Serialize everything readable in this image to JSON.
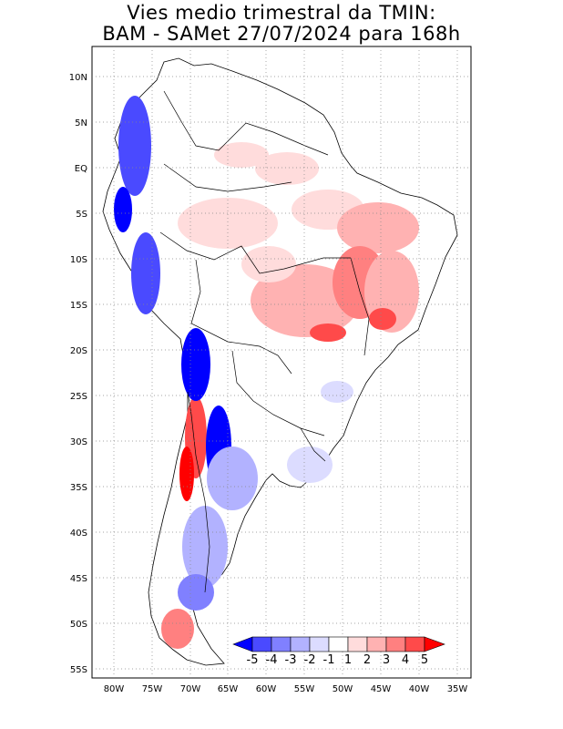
{
  "title": {
    "line1": "Vies medio trimestral da TMIN:",
    "line2": "BAM - SAMet 27/07/2024  para 168h"
  },
  "map": {
    "region": "South America",
    "field": "TMIN bias",
    "lat_labels": [
      "10N",
      "5N",
      "EQ",
      "5S",
      "10S",
      "15S",
      "20S",
      "25S",
      "30S",
      "35S",
      "40S",
      "45S",
      "50S",
      "55S"
    ],
    "lon_labels": [
      "80W",
      "75W",
      "70W",
      "65W",
      "60W",
      "55W",
      "50W",
      "45W",
      "40W",
      "35W"
    ],
    "grid": "dotted"
  },
  "colorbar": {
    "labels": [
      "-5",
      "-4",
      "-3",
      "-2",
      "-1",
      "1",
      "2",
      "3",
      "4",
      "5"
    ],
    "colors": [
      "#0000ff",
      "#4a4aff",
      "#8080ff",
      "#b2b2ff",
      "#dcdcff",
      "#ffffff",
      "#ffdcdc",
      "#ffb2b2",
      "#ff8080",
      "#ff4a4a",
      "#ff0000"
    ]
  }
}
